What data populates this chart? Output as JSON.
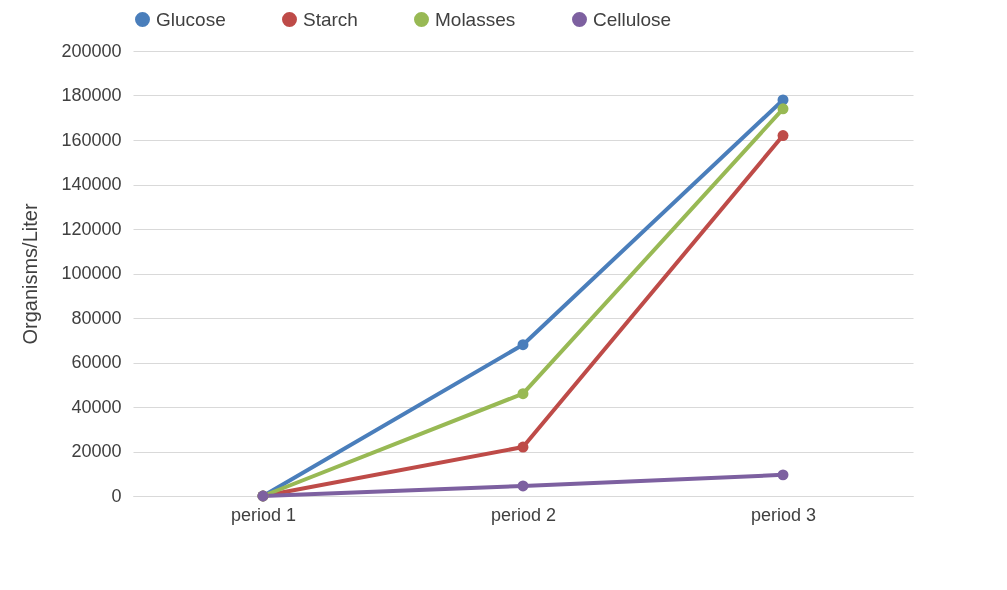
{
  "chart_data": {
    "type": "line",
    "ylabel": "Organisms/Liter",
    "categories": [
      "period 1",
      "period 2",
      "period 3"
    ],
    "series": [
      {
        "name": "Glucose",
        "color": "#4a7ebb",
        "values": [
          0,
          68000,
          178000
        ]
      },
      {
        "name": "Starch",
        "color": "#be4b48",
        "values": [
          0,
          22000,
          162000
        ]
      },
      {
        "name": "Molasses",
        "color": "#98b954",
        "values": [
          0,
          46000,
          174000
        ]
      },
      {
        "name": "Cellulose",
        "color": "#7d60a0",
        "values": [
          0,
          4500,
          9500
        ]
      }
    ],
    "ylim": [
      0,
      200000
    ],
    "yticks": [
      0,
      20000,
      40000,
      60000,
      80000,
      100000,
      120000,
      140000,
      160000,
      180000,
      200000
    ],
    "grid": "y",
    "legend": "top",
    "marker": "circle",
    "line_style": "solid"
  }
}
